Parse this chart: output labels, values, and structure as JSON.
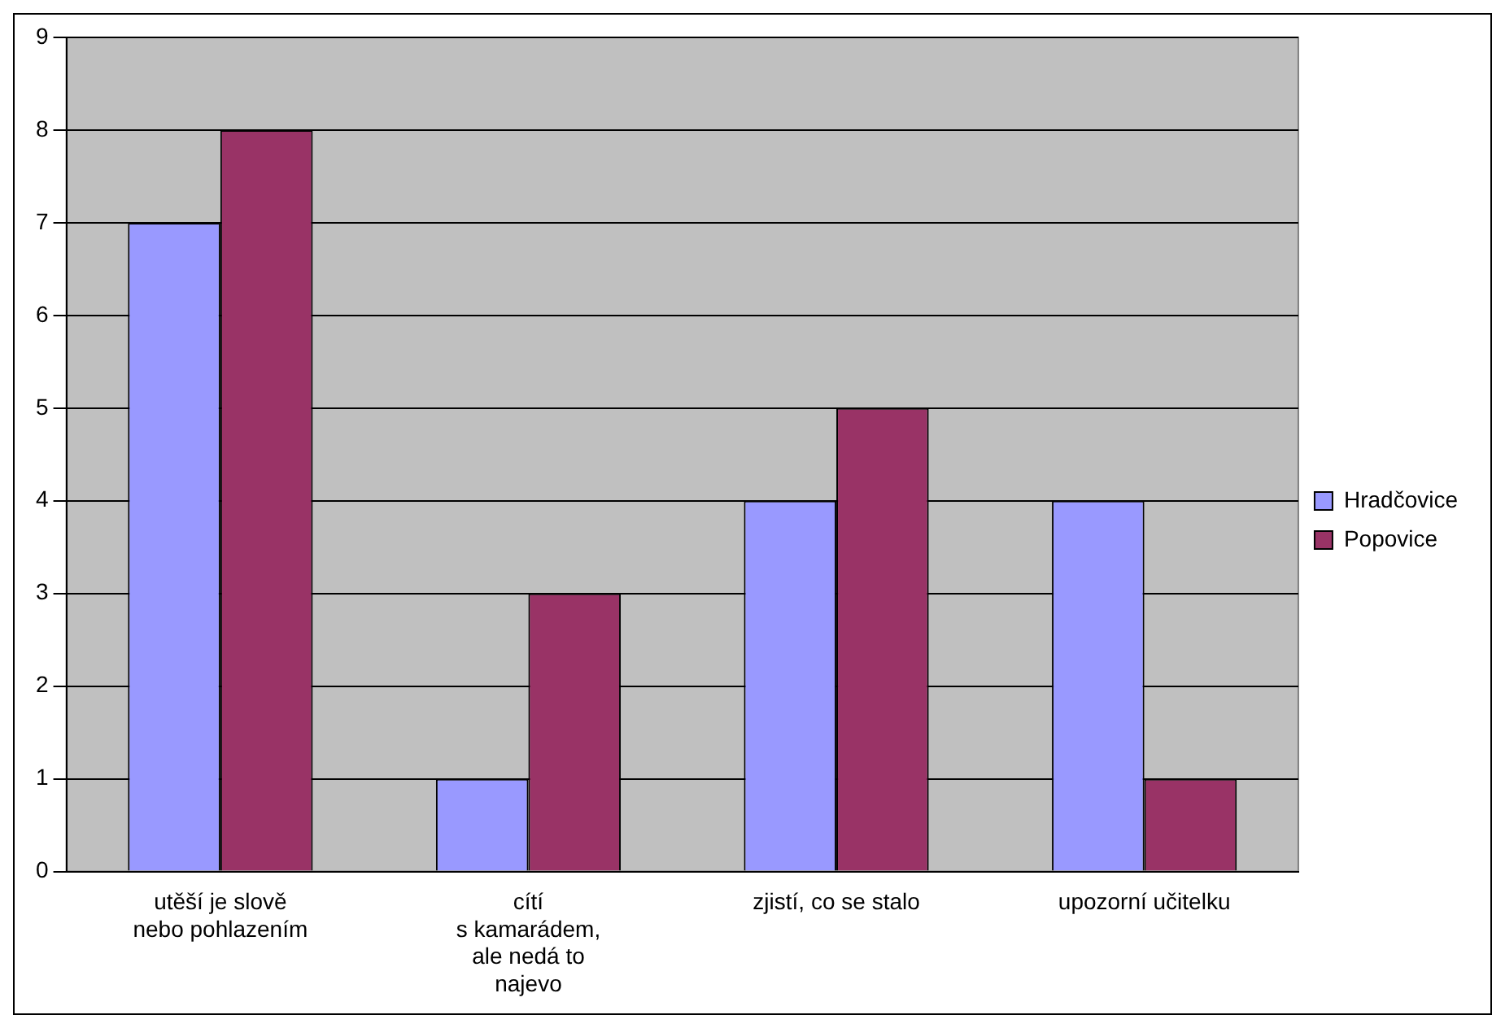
{
  "chart_data": {
    "type": "bar",
    "categories": [
      "utěší je slově\nnebo pohlazením",
      "cítí\ns kamarádem,\nale nedá to\nnajevo",
      "zjistí, co se stalo",
      "upozorní učitelku"
    ],
    "series": [
      {
        "name": "Hradčovice",
        "color": "#9999ff",
        "values": [
          7,
          1,
          4,
          4
        ]
      },
      {
        "name": "Popovice",
        "color": "#993366",
        "values": [
          8,
          3,
          5,
          1
        ]
      }
    ],
    "ylim": [
      0,
      9
    ],
    "yticks": [
      0,
      1,
      2,
      3,
      4,
      5,
      6,
      7,
      8,
      9
    ],
    "grid": "y",
    "legend": "right"
  }
}
